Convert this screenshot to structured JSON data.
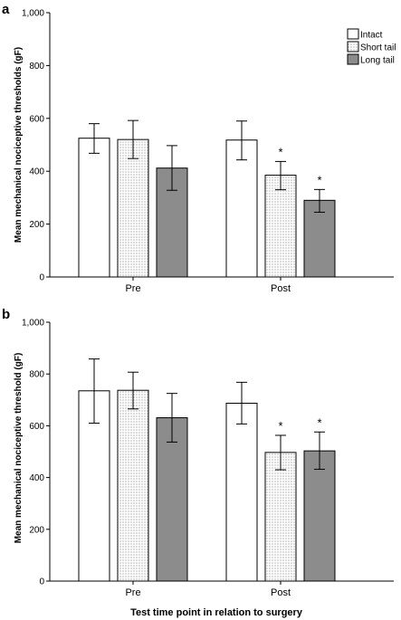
{
  "chart_data": [
    {
      "type": "bar",
      "panel": "a",
      "ylabel": "Mean mechanical nociceptive thresholds (gF)",
      "xlabel": "",
      "ylim": [
        0,
        1000
      ],
      "yticks": [
        "0",
        "200",
        "400",
        "600",
        "800",
        "1,000"
      ],
      "categories": [
        "Pre",
        "Post"
      ],
      "legend": "top-right",
      "series": [
        {
          "name": "Intact",
          "values": [
            525,
            518
          ],
          "err_low": [
            468,
            443
          ],
          "err_high": [
            580,
            590
          ],
          "sig": [
            "",
            ""
          ]
        },
        {
          "name": "Short tail",
          "values": [
            520,
            385
          ],
          "err_low": [
            448,
            330
          ],
          "err_high": [
            592,
            437
          ],
          "sig": [
            "",
            "*"
          ]
        },
        {
          "name": "Long tail",
          "values": [
            412,
            290
          ],
          "err_low": [
            328,
            245
          ],
          "err_high": [
            497,
            331
          ],
          "sig": [
            "",
            "*"
          ]
        }
      ]
    },
    {
      "type": "bar",
      "panel": "b",
      "ylabel": "Mean mechanical nociceptive threshold (gF)",
      "xlabel": "Test time point in relation to surgery",
      "ylim": [
        0,
        1000
      ],
      "yticks": [
        "0",
        "200",
        "400",
        "600",
        "800",
        "1,000"
      ],
      "categories": [
        "Pre",
        "Post"
      ],
      "series": [
        {
          "name": "Intact",
          "values": [
            735,
            687
          ],
          "err_low": [
            610,
            607
          ],
          "err_high": [
            858,
            768
          ],
          "sig": [
            "",
            ""
          ]
        },
        {
          "name": "Short tail",
          "values": [
            737,
            497
          ],
          "err_low": [
            665,
            430
          ],
          "err_high": [
            807,
            563
          ],
          "sig": [
            "",
            "*"
          ]
        },
        {
          "name": "Long tail",
          "values": [
            631,
            503
          ],
          "err_low": [
            537,
            432
          ],
          "err_high": [
            725,
            576
          ],
          "sig": [
            "",
            "*"
          ]
        }
      ]
    }
  ],
  "colors": {
    "intact": "#ffffff",
    "short_tail": "#ffffff",
    "long_tail": "#8c8c8c",
    "axis": "#000000"
  }
}
